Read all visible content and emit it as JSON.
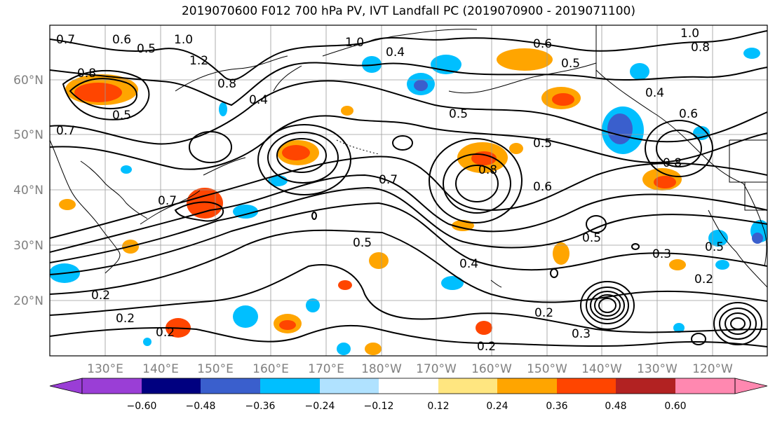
{
  "title": "2019070600 F012 700 hPa PV, IVT Landfall PC (2019070900 - 2019071100)",
  "lat_labels": [
    "60°N",
    "50°N",
    "40°N",
    "30°N",
    "20°N"
  ],
  "lon_labels": [
    "130°E",
    "140°E",
    "150°E",
    "160°E",
    "170°E",
    "180°W",
    "170°W",
    "160°W",
    "150°W",
    "140°W",
    "130°W",
    "120°W"
  ],
  "colorbar": {
    "tick_labels": [
      "−0.60",
      "−0.48",
      "−0.36",
      "−0.24",
      "−0.12",
      "0.12",
      "0.24",
      "0.36",
      "0.48",
      "0.60"
    ],
    "colors": [
      "#9a3ed6",
      "#000080",
      "#3a5fcd",
      "#00bfff",
      "#b0e2ff",
      "#ffffff",
      "#ffe680",
      "#ffa500",
      "#ff4500",
      "#b22222",
      "#ff88b0"
    ]
  },
  "contour_labels": [
    "0.7",
    "0.6",
    "0.5",
    "1.0",
    "1.2",
    "0.8",
    "0.4",
    "0.3",
    "0.2"
  ],
  "colors": {
    "grid": "#9a9a9a",
    "contour": "#000000",
    "coast": "#000000"
  }
}
